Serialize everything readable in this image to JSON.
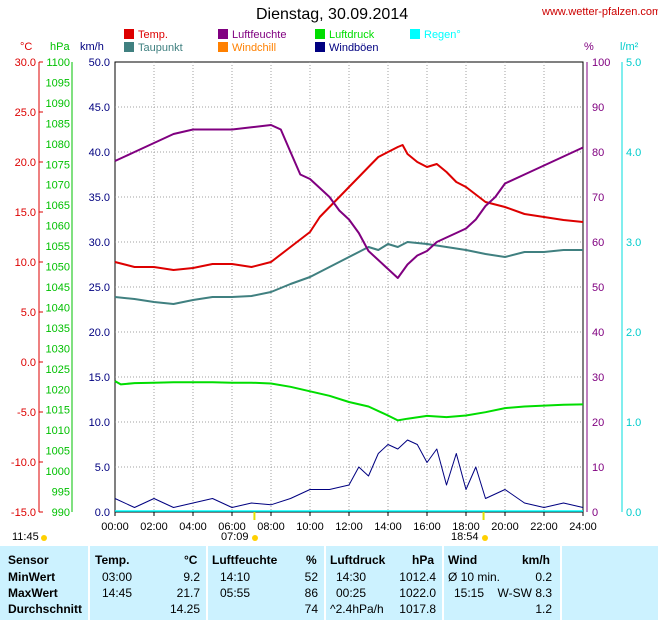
{
  "header": {
    "title": "Dienstag, 30.09.2014",
    "site": "www.wetter-pfalzen.com"
  },
  "axes": {
    "temp_unit": "°C",
    "pressure_unit": "hPa",
    "wind_unit": "km/h",
    "humidity_unit": "%",
    "rain_unit": "l/m²",
    "temp_ticks": [
      "30.0",
      "25.0",
      "20.0",
      "15.0",
      "10.0",
      "5.0",
      "0.0",
      "-5.0",
      "-10.0",
      "-15.0"
    ],
    "pressure_ticks": [
      "1100",
      "1095",
      "1090",
      "1085",
      "1080",
      "1075",
      "1070",
      "1065",
      "1060",
      "1055",
      "1050",
      "1045",
      "1040",
      "1035",
      "1030",
      "1025",
      "1020",
      "1015",
      "1010",
      "1005",
      "1000",
      "995",
      "990"
    ],
    "wind_ticks": [
      "50.0",
      "45.0",
      "40.0",
      "35.0",
      "30.0",
      "25.0",
      "20.0",
      "15.0",
      "10.0",
      "5.0",
      "0.0"
    ],
    "humidity_ticks": [
      "100",
      "90",
      "80",
      "70",
      "60",
      "50",
      "40",
      "30",
      "20",
      "10",
      "0"
    ],
    "rain_ticks": [
      "5.0",
      "4.0",
      "3.0",
      "2.0",
      "1.0",
      "0.0"
    ],
    "time_ticks": [
      "00:00",
      "02:00",
      "04:00",
      "06:00",
      "08:00",
      "10:00",
      "12:00",
      "14:00",
      "16:00",
      "18:00",
      "20:00",
      "22:00",
      "24:00"
    ]
  },
  "legend": [
    {
      "label": "Temp.",
      "color": "#dd0000"
    },
    {
      "label": "Luftfeuchte",
      "color": "#800080"
    },
    {
      "label": "Luftdruck",
      "color": "#00dd00"
    },
    {
      "label": "Regen°",
      "color": "#00ffff"
    },
    {
      "label": "Taupunkt",
      "color": "#408080"
    },
    {
      "label": "Windchill",
      "color": "#ff8000"
    },
    {
      "label": "Windböen",
      "color": "#000080"
    }
  ],
  "sun": {
    "sunrise": "07:09",
    "sunset": "18:54",
    "daylength": "11:45"
  },
  "chart_data": {
    "type": "line",
    "x_range": [
      "00:00",
      "24:00"
    ],
    "grid": true,
    "series": [
      {
        "name": "Temp.",
        "axis": "temp",
        "color": "#dd0000",
        "x": [
          0,
          1,
          2,
          3,
          4,
          5,
          6,
          7,
          8,
          9,
          10,
          10.5,
          11,
          11.5,
          12,
          12.5,
          13,
          13.5,
          14,
          14.5,
          14.75,
          15,
          15.5,
          16,
          16.5,
          17,
          17.5,
          18,
          19,
          20,
          21,
          22,
          23,
          24
        ],
        "y": [
          10.0,
          9.5,
          9.5,
          9.2,
          9.4,
          9.8,
          9.8,
          9.5,
          10.0,
          11.5,
          13.0,
          14.5,
          15.5,
          16.5,
          17.5,
          18.5,
          19.5,
          20.5,
          21.0,
          21.5,
          21.7,
          20.8,
          20.0,
          19.5,
          19.8,
          19.0,
          18.0,
          17.5,
          16.0,
          15.5,
          14.8,
          14.5,
          14.2,
          14.0
        ]
      },
      {
        "name": "Taupunkt",
        "axis": "temp",
        "color": "#408080",
        "x": [
          0,
          1,
          2,
          3,
          4,
          5,
          6,
          7,
          8,
          9,
          10,
          11,
          12,
          12.5,
          13,
          13.5,
          14,
          14.5,
          15,
          16,
          17,
          18,
          19,
          20,
          21,
          22,
          23,
          24
        ],
        "y": [
          6.5,
          6.3,
          6.0,
          5.8,
          6.2,
          6.5,
          6.5,
          6.6,
          7.0,
          7.8,
          8.5,
          9.5,
          10.5,
          11.0,
          11.5,
          11.2,
          11.8,
          11.5,
          12.0,
          11.8,
          11.5,
          11.2,
          10.8,
          10.5,
          11.0,
          11.0,
          11.2,
          11.2
        ]
      },
      {
        "name": "Luftfeuchte",
        "axis": "humidity",
        "color": "#800080",
        "x": [
          0,
          0.5,
          1,
          2,
          3,
          4,
          5,
          6,
          7,
          8,
          8.5,
          9,
          9.5,
          10,
          10.5,
          11,
          11.5,
          12,
          12.5,
          13,
          13.5,
          14,
          14.5,
          15,
          15.5,
          16,
          16.5,
          17,
          17.5,
          18,
          18.5,
          19,
          19.5,
          20,
          21,
          22,
          23,
          24
        ],
        "y": [
          78,
          79,
          80,
          82,
          84,
          85,
          85,
          85,
          85.5,
          86,
          85,
          80,
          75,
          74,
          72,
          70,
          67,
          65,
          62,
          58,
          56,
          54,
          52,
          55,
          57,
          58,
          60,
          61,
          62,
          63,
          65,
          68,
          70,
          73,
          75,
          77,
          79,
          81
        ]
      },
      {
        "name": "Luftdruck",
        "axis": "pressure",
        "color": "#00dd00",
        "x": [
          0,
          0.3,
          1,
          2,
          3,
          4,
          5,
          6,
          7,
          8,
          9,
          10,
          11,
          12,
          13,
          14,
          14.5,
          15,
          16,
          17,
          18,
          19,
          20,
          21,
          22,
          23,
          24
        ],
        "y": [
          1022.0,
          1021.2,
          1021.5,
          1021.6,
          1021.7,
          1021.7,
          1021.7,
          1021.6,
          1021.6,
          1021.4,
          1020.6,
          1019.5,
          1018.4,
          1016.9,
          1015.8,
          1013.6,
          1012.4,
          1012.8,
          1013.5,
          1013.2,
          1013.6,
          1014.4,
          1015.4,
          1015.8,
          1016.0,
          1016.2,
          1016.3
        ]
      },
      {
        "name": "Windböen",
        "axis": "wind",
        "color": "#000080",
        "x": [
          0,
          1,
          2,
          3,
          4,
          5,
          6,
          7,
          8,
          9,
          10,
          11,
          12,
          12.5,
          13,
          13.5,
          14,
          14.5,
          15,
          15.5,
          16,
          16.5,
          17,
          17.5,
          18,
          18.5,
          19,
          20,
          21,
          22,
          23,
          24
        ],
        "y": [
          1.5,
          0.5,
          1.5,
          0.5,
          1.0,
          1.5,
          0.5,
          1.0,
          0.8,
          1.5,
          2.5,
          2.5,
          3.0,
          5.0,
          4.0,
          6.5,
          7.5,
          7.0,
          8.0,
          7.5,
          5.5,
          7.0,
          3.0,
          6.5,
          2.5,
          5.0,
          1.5,
          2.5,
          1.0,
          0.5,
          1.0,
          0.5
        ]
      }
    ]
  },
  "stats": {
    "headers": {
      "sensor": "Sensor",
      "temp": "Temp.",
      "temp_unit": "°C",
      "hum": "Luftfeuchte",
      "hum_unit": "%",
      "press": "Luftdruck",
      "press_unit": "hPa",
      "wind": "Wind",
      "wind_unit": "km/h"
    },
    "rows": [
      {
        "label": "MinWert",
        "t_time": "03:00",
        "t_val": "9.2",
        "h_time": "14:10",
        "h_val": "52",
        "p_time": "14:30",
        "p_val": "1012.4",
        "w_time": "Ø 10 min.",
        "w_val": "0.2"
      },
      {
        "label": "MaxWert",
        "t_time": "14:45",
        "t_val": "21.7",
        "h_time": "05:55",
        "h_val": "86",
        "p_time": "00:25",
        "p_val": "1022.0",
        "w_time": "15:15",
        "w_val": "W-SW 8.3"
      },
      {
        "label": "Durchschnitt",
        "t_time": "",
        "t_val": "14.25",
        "h_time": "",
        "h_val": "74",
        "p_time": "^2.4hPa/h",
        "p_val": "1017.8",
        "w_time": "",
        "w_val": "1.2"
      }
    ]
  }
}
